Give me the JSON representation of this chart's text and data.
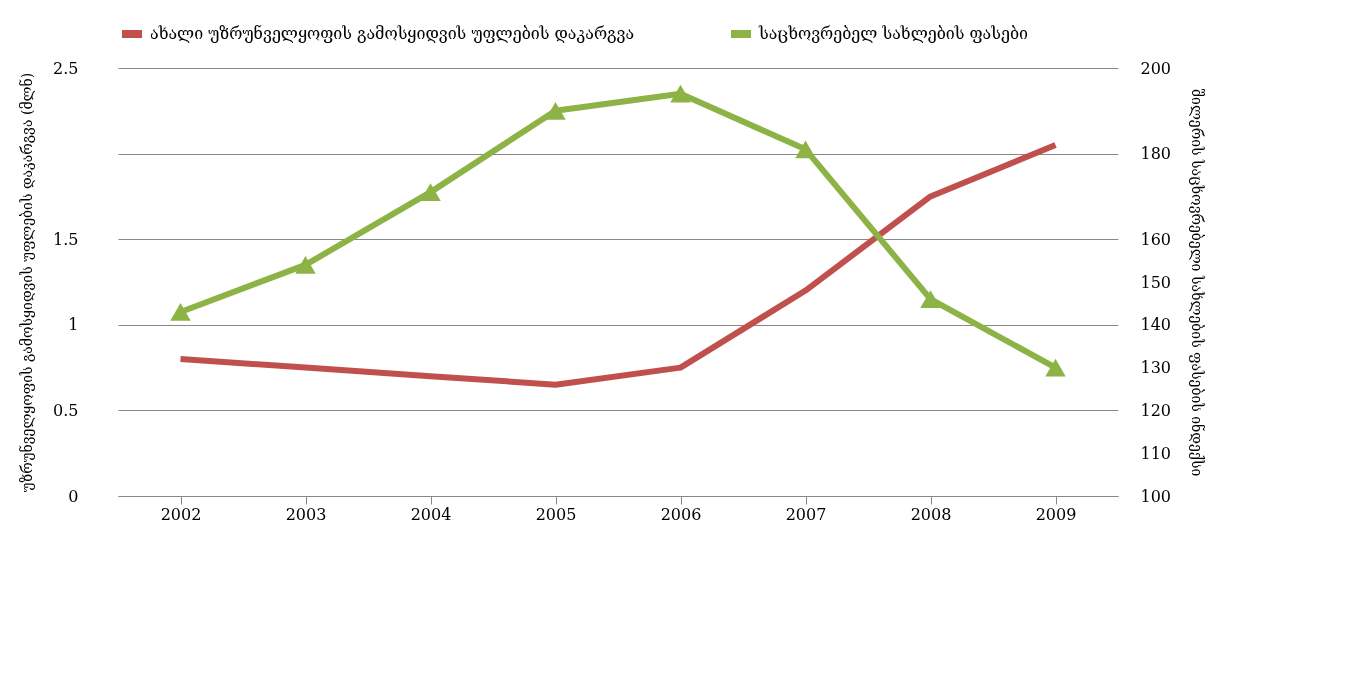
{
  "chart_data": {
    "type": "line",
    "categories": [
      "2002",
      "2003",
      "2004",
      "2005",
      "2006",
      "2007",
      "2008",
      "2009"
    ],
    "ylabel": "უზრუნველყოფის გამოსყიდვის უფლების დაკარგვა (მლნ)",
    "y2label": "შილერის საცხოვრებელი სახლების ფასების ინდექსი",
    "ylim": [
      0,
      2.5
    ],
    "yticks": [
      0,
      0.5,
      1,
      1.5,
      {
        "value": 2,
        "label": null
      },
      2.5
    ],
    "y2lim": [
      100,
      200
    ],
    "y2ticks": [
      100,
      110,
      120,
      130,
      140,
      150,
      160,
      180,
      200
    ],
    "grid": "y",
    "legend": "top",
    "series": [
      {
        "name": "ახალი უზრუნველყოფის გამოსყიდვის უფლების დაკარგვა",
        "color": "#c0504d",
        "values": [
          0.8,
          0.75,
          0.7,
          0.65,
          0.75,
          1.2,
          1.75,
          2.05
        ]
      },
      {
        "name": "საცხოვრებელ სახლების ფასები",
        "color": "#8db347",
        "axis": "y2",
        "marker": "triangle",
        "values": [
          143,
          154,
          171,
          190,
          194,
          181,
          146,
          130
        ]
      }
    ]
  }
}
